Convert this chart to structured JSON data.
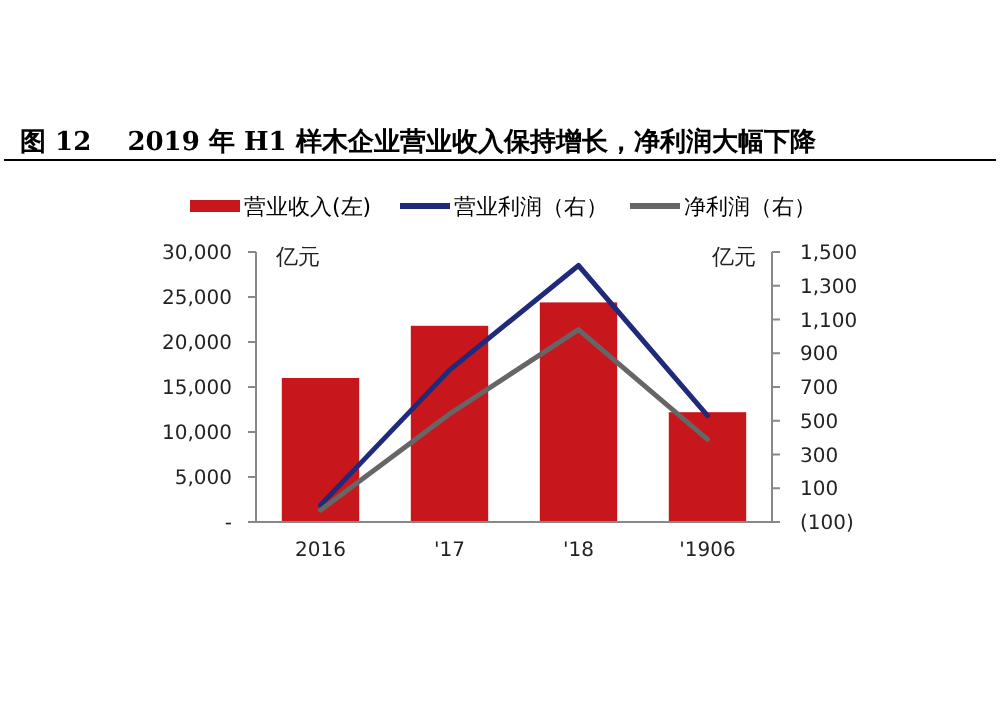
{
  "chart_data": {
    "type": "bar",
    "title": "图 12    2019 年 H1 样木企业营业收入保持增长，净利润大幅下降",
    "ylabel": "亿元",
    "y2label": "亿元",
    "categories": [
      "2016",
      "'17",
      "'18",
      "'1906"
    ],
    "series": [
      {
        "name": "营业收入(左)",
        "color": "#c8161d",
        "values": [
          16000,
          21800,
          24400,
          12200
        ]
      },
      {
        "name": "营业利润（右）",
        "type": "line",
        "axis": "y2",
        "color": "#1f2a7a",
        "values": [
          0,
          800,
          1420,
          530
        ]
      },
      {
        "name": "净利润（右）",
        "type": "line",
        "axis": "y2",
        "color": "#666666",
        "values": [
          -30,
          540,
          1040,
          390
        ]
      }
    ],
    "ylim": [
      0,
      30000
    ],
    "yticks": [
      {
        "value": 0,
        "label": "-"
      },
      {
        "value": 5000,
        "label": "5,000"
      },
      {
        "value": 10000,
        "label": "10,000"
      },
      {
        "value": 15000,
        "label": "15,000"
      },
      {
        "value": 20000,
        "label": "20,000"
      },
      {
        "value": 25000,
        "label": "25,000"
      },
      {
        "value": 30000,
        "label": "30,000"
      }
    ],
    "y2lim": [
      -100,
      1500
    ],
    "y2ticks": [
      {
        "value": -100,
        "label": "(100)"
      },
      100,
      300,
      500,
      700,
      900,
      {
        "value": 1100,
        "label": "1,100"
      },
      {
        "value": 1300,
        "label": "1,300"
      },
      {
        "value": 1500,
        "label": "1,500"
      }
    ],
    "legend": "top",
    "grid": false
  }
}
